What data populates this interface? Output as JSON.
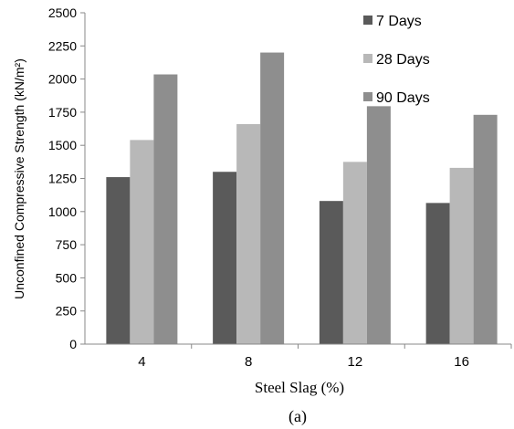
{
  "chart_data": {
    "type": "bar",
    "categories": [
      "4",
      "8",
      "12",
      "16"
    ],
    "series": [
      {
        "name": "7 Days",
        "values": [
          1260,
          1300,
          1080,
          1065
        ],
        "color": "#5a5a5a"
      },
      {
        "name": "28 Days",
        "values": [
          1540,
          1660,
          1375,
          1330
        ],
        "color": "#b8b8b8"
      },
      {
        "name": "90 Days",
        "values": [
          2035,
          2200,
          1795,
          1730
        ],
        "color": "#8e8e8e"
      }
    ],
    "xlabel": "Steel Slag (%)",
    "ylabel": "Unconfined Compressive Strength (kN/m²)",
    "ylim": [
      0,
      2500
    ],
    "yticks": [
      0,
      250,
      500,
      750,
      1000,
      1250,
      1500,
      1750,
      2000,
      2250,
      2500
    ],
    "grid": false,
    "legend": "top-right",
    "caption": "(a)"
  }
}
